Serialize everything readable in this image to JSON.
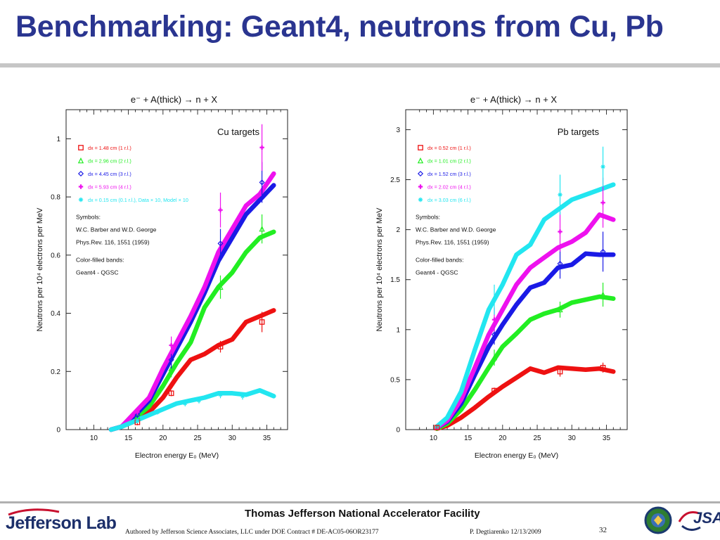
{
  "slide": {
    "title": "Benchmarking: Geant4, neutrons from Cu, Pb"
  },
  "footer": {
    "org": "Thomas Jefferson National Accelerator Facility",
    "authored": "Authored by Jefferson Science Associates, LLC under DOE Contract #  DE-AC05-06OR23177",
    "presenter": "P. Degtiarenko 12/13/2009",
    "page": "32",
    "logo_left": "Jefferson Lab",
    "logo_right": "JSA",
    "seal_icon": "doe-seal-icon"
  },
  "chart_data": [
    {
      "type": "line",
      "reaction": "e⁻ + A(thick)  →  n + X",
      "panel_title": "Cu targets",
      "xlabel": "Electron energy E₀ (MeV)",
      "ylabel": "Neutrons per 10⁴ electrons per MeV",
      "xlim": [
        6,
        38
      ],
      "ylim": [
        0,
        1.1
      ],
      "xticks": [
        10,
        15,
        20,
        25,
        30,
        35
      ],
      "yticks": [
        0,
        0.2,
        0.4,
        0.6,
        0.8,
        1
      ],
      "ytick_labels": [
        "0",
        "0.2",
        "0.4",
        "0.6",
        "0.8",
        "1"
      ],
      "notes": [
        "Symbols:",
        "W.C. Barber and W.D. George",
        "Phys.Rev. 116, 1551 (1959)",
        "Color-filled bands:",
        "Geant4 - QGSC"
      ],
      "series": [
        {
          "name": "dx = 1.48 cm (1 r.l.)",
          "color": "#ee1111",
          "marker": "square",
          "x": [
            12.5,
            14,
            16,
            18,
            20,
            22,
            24,
            26,
            28,
            30,
            32,
            34,
            36
          ],
          "y": [
            0.0,
            0.01,
            0.03,
            0.06,
            0.11,
            0.18,
            0.24,
            0.26,
            0.29,
            0.31,
            0.37,
            0.39,
            0.41
          ],
          "points": [
            {
              "x": 16.3,
              "y": 0.025,
              "err": 0.01
            },
            {
              "x": 21.2,
              "y": 0.125,
              "err": 0.01
            },
            {
              "x": 28.3,
              "y": 0.285,
              "err": 0.02
            },
            {
              "x": 34.3,
              "y": 0.37,
              "err": 0.035
            }
          ]
        },
        {
          "name": "dx = 2.96 cm (2 r.l.)",
          "color": "#22ee22",
          "marker": "triangle",
          "x": [
            12.5,
            14,
            16,
            18,
            20,
            22,
            24,
            26,
            28,
            30,
            32,
            34,
            36
          ],
          "y": [
            0.0,
            0.01,
            0.04,
            0.08,
            0.15,
            0.23,
            0.3,
            0.42,
            0.49,
            0.54,
            0.61,
            0.66,
            0.68
          ],
          "points": [
            {
              "x": 16.3,
              "y": 0.045,
              "err": 0.01
            },
            {
              "x": 21.2,
              "y": 0.21,
              "err": 0.03
            },
            {
              "x": 28.3,
              "y": 0.49,
              "err": 0.04
            },
            {
              "x": 34.3,
              "y": 0.69,
              "err": 0.05
            }
          ]
        },
        {
          "name": "dx = 4.45 cm (3 r.l.)",
          "color": "#1a1ae6",
          "marker": "diamond",
          "x": [
            12.5,
            14,
            16,
            18,
            20,
            22,
            24,
            26,
            28,
            30,
            32,
            34,
            36
          ],
          "y": [
            0.0,
            0.01,
            0.05,
            0.1,
            0.19,
            0.28,
            0.37,
            0.47,
            0.58,
            0.66,
            0.74,
            0.79,
            0.84
          ],
          "points": [
            {
              "x": 16.3,
              "y": 0.05,
              "err": 0.01
            },
            {
              "x": 21.2,
              "y": 0.24,
              "err": 0.03
            },
            {
              "x": 28.3,
              "y": 0.64,
              "err": 0.05
            },
            {
              "x": 34.3,
              "y": 0.85,
              "err": 0.07
            }
          ]
        },
        {
          "name": "dx = 5.93 cm (4 r.l.)",
          "color": "#ee11ee",
          "marker": "cross",
          "x": [
            12.5,
            14,
            16,
            18,
            20,
            22,
            24,
            26,
            28,
            30,
            32,
            34,
            36
          ],
          "y": [
            0.0,
            0.01,
            0.06,
            0.11,
            0.21,
            0.3,
            0.39,
            0.49,
            0.61,
            0.69,
            0.77,
            0.81,
            0.88
          ],
          "points": [
            {
              "x": 16.3,
              "y": 0.06,
              "err": 0.01
            },
            {
              "x": 21.2,
              "y": 0.29,
              "err": 0.03
            },
            {
              "x": 28.3,
              "y": 0.755,
              "err": 0.06
            },
            {
              "x": 34.3,
              "y": 0.97,
              "err": 0.08
            }
          ]
        },
        {
          "name": "dx = 0.15 cm (0.1 r.l.), Data × 10, Model × 10",
          "color": "#22e6f0",
          "marker": "star",
          "x": [
            12.5,
            14,
            16,
            18,
            20,
            22,
            24,
            26,
            28,
            30,
            32,
            34,
            36
          ],
          "y": [
            0.0,
            0.01,
            0.03,
            0.05,
            0.07,
            0.09,
            0.1,
            0.11,
            0.125,
            0.125,
            0.12,
            0.135,
            0.115
          ],
          "points": [
            {
              "x": 16.3,
              "y": 0.03,
              "err": 0.008
            },
            {
              "x": 19.2,
              "y": 0.06,
              "err": 0.008
            },
            {
              "x": 23.2,
              "y": 0.09,
              "err": 0.01
            },
            {
              "x": 25.2,
              "y": 0.1,
              "err": 0.01
            },
            {
              "x": 28.3,
              "y": 0.12,
              "err": 0.012
            },
            {
              "x": 31.5,
              "y": 0.115,
              "err": 0.012
            }
          ]
        }
      ]
    },
    {
      "type": "line",
      "reaction": "e⁻ + A(thick)  →  n + X",
      "panel_title": "Pb targets",
      "xlabel": "Electron energy E₀ (MeV)",
      "ylabel": "Neutrons per 10⁴ electrons per MeV",
      "xlim": [
        6,
        38
      ],
      "ylim": [
        0,
        3.2
      ],
      "xticks": [
        10,
        15,
        20,
        25,
        30,
        35
      ],
      "yticks": [
        0,
        0.5,
        1,
        1.5,
        2,
        2.5,
        3
      ],
      "ytick_labels": [
        "0",
        "0.5",
        "1",
        "1.5",
        "2",
        "2.5",
        "3"
      ],
      "notes": [
        "Symbols:",
        "W.C. Barber and W.D. George",
        "Phys.Rev. 116, 1551 (1959)",
        "Color-filled bands:",
        "Geant4 - QGSC"
      ],
      "series": [
        {
          "name": "dx = 0.52 cm (1 r.l.)",
          "color": "#ee1111",
          "marker": "square",
          "x": [
            10.5,
            12,
            14,
            16,
            18,
            20,
            22,
            24,
            26,
            28,
            30,
            32,
            34,
            36
          ],
          "y": [
            0.01,
            0.04,
            0.12,
            0.22,
            0.33,
            0.43,
            0.52,
            0.61,
            0.57,
            0.62,
            0.61,
            0.6,
            0.61,
            0.58
          ],
          "points": [
            {
              "x": 10.5,
              "y": 0.02,
              "err": 0.02
            },
            {
              "x": 18.8,
              "y": 0.39,
              "err": 0.03
            },
            {
              "x": 28.3,
              "y": 0.58,
              "err": 0.05
            },
            {
              "x": 34.5,
              "y": 0.62,
              "err": 0.05
            }
          ]
        },
        {
          "name": "dx = 1.01 cm (2 r.l.)",
          "color": "#22ee22",
          "marker": "triangle",
          "x": [
            10.5,
            12,
            14,
            16,
            18,
            20,
            22,
            24,
            26,
            28,
            30,
            32,
            34,
            36
          ],
          "y": [
            0.01,
            0.06,
            0.2,
            0.4,
            0.62,
            0.83,
            0.96,
            1.1,
            1.16,
            1.2,
            1.27,
            1.3,
            1.33,
            1.31
          ],
          "points": [
            {
              "x": 18.8,
              "y": 0.72,
              "err": 0.08
            },
            {
              "x": 28.3,
              "y": 1.2,
              "err": 0.08
            },
            {
              "x": 34.5,
              "y": 1.35,
              "err": 0.12
            }
          ]
        },
        {
          "name": "dx = 1.52 cm (3 r.l.)",
          "color": "#1a1ae6",
          "marker": "diamond",
          "x": [
            10.5,
            12,
            14,
            16,
            18,
            20,
            22,
            24,
            26,
            28,
            30,
            32,
            34,
            36
          ],
          "y": [
            0.02,
            0.08,
            0.26,
            0.55,
            0.83,
            1.05,
            1.25,
            1.42,
            1.47,
            1.62,
            1.65,
            1.76,
            1.75,
            1.75
          ],
          "points": [
            {
              "x": 18.8,
              "y": 0.95,
              "err": 0.1
            },
            {
              "x": 28.3,
              "y": 1.66,
              "err": 0.15
            },
            {
              "x": 34.5,
              "y": 1.78,
              "err": 0.2
            }
          ]
        },
        {
          "name": "dx = 2.02 cm (4 r.l.)",
          "color": "#ee11ee",
          "marker": "cross",
          "x": [
            10.5,
            12,
            14,
            16,
            18,
            20,
            22,
            24,
            26,
            28,
            30,
            32,
            34,
            36
          ],
          "y": [
            0.02,
            0.09,
            0.3,
            0.62,
            0.95,
            1.2,
            1.45,
            1.62,
            1.72,
            1.82,
            1.88,
            1.97,
            2.15,
            2.1
          ],
          "points": [
            {
              "x": 18.8,
              "y": 1.1,
              "err": 0.12
            },
            {
              "x": 28.3,
              "y": 1.98,
              "err": 0.2
            },
            {
              "x": 34.5,
              "y": 2.27,
              "err": 0.25
            }
          ]
        },
        {
          "name": "dx = 3.03 cm (6 r.l.)",
          "color": "#22e6f0",
          "marker": "star",
          "x": [
            10.5,
            12,
            14,
            16,
            18,
            20,
            22,
            24,
            26,
            28,
            30,
            32,
            34,
            36
          ],
          "y": [
            0.03,
            0.12,
            0.38,
            0.8,
            1.2,
            1.45,
            1.75,
            1.85,
            2.1,
            2.2,
            2.3,
            2.35,
            2.4,
            2.45
          ],
          "points": [
            {
              "x": 18.8,
              "y": 1.3,
              "err": 0.15
            },
            {
              "x": 28.3,
              "y": 2.35,
              "err": 0.2
            },
            {
              "x": 34.5,
              "y": 2.63,
              "err": 0.2
            }
          ]
        }
      ]
    }
  ]
}
